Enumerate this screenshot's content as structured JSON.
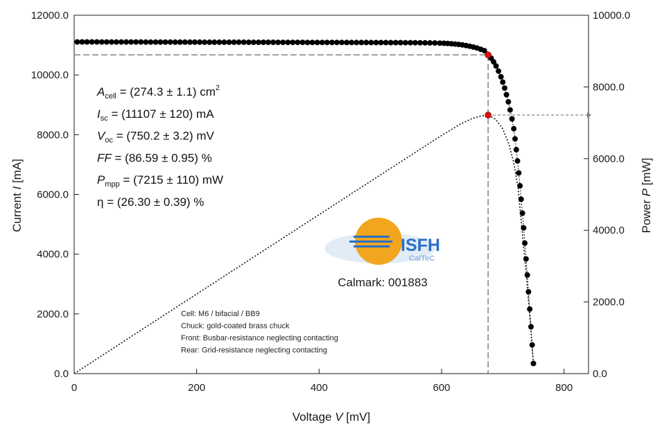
{
  "chart_data": {
    "type": "scatter",
    "xlabel_main": "Voltage ",
    "xlabel_var": "V",
    "xlabel_unit": " [mV]",
    "ylabel_main": "Current ",
    "ylabel_var": "I",
    "ylabel_unit": " [mA]",
    "y2label_main": "Power ",
    "y2label_var": "P",
    "y2label_unit": " [mW]",
    "xlim": [
      0,
      840
    ],
    "ylim": [
      0,
      12000
    ],
    "y2lim": [
      0,
      10000
    ],
    "x_ticks": [
      "0",
      "200",
      "400",
      "600",
      "800"
    ],
    "y_ticks": [
      "0.0",
      "2000.0",
      "4000.0",
      "6000.0",
      "8000.0",
      "10000.0",
      "12000.0"
    ],
    "y2_ticks": [
      "0.0",
      "2000.0",
      "4000.0",
      "6000.0",
      "8000.0",
      "10000.0"
    ],
    "mpp": {
      "voltage": 676,
      "current": 10673,
      "power": 7215
    },
    "iv_series": {
      "marker_color": "#000000",
      "points": [
        [
          5,
          11107
        ],
        [
          13,
          11107
        ],
        [
          21,
          11106
        ],
        [
          29,
          11106
        ],
        [
          37,
          11106
        ],
        [
          45,
          11105
        ],
        [
          53,
          11105
        ],
        [
          61,
          11105
        ],
        [
          69,
          11104
        ],
        [
          77,
          11104
        ],
        [
          85,
          11104
        ],
        [
          93,
          11103
        ],
        [
          101,
          11103
        ],
        [
          109,
          11103
        ],
        [
          117,
          11102
        ],
        [
          125,
          11102
        ],
        [
          133,
          11102
        ],
        [
          141,
          11101
        ],
        [
          149,
          11101
        ],
        [
          157,
          11101
        ],
        [
          165,
          11100
        ],
        [
          173,
          11100
        ],
        [
          181,
          11100
        ],
        [
          189,
          11099
        ],
        [
          197,
          11099
        ],
        [
          205,
          11099
        ],
        [
          213,
          11098
        ],
        [
          221,
          11098
        ],
        [
          229,
          11098
        ],
        [
          237,
          11097
        ],
        [
          245,
          11097
        ],
        [
          253,
          11097
        ],
        [
          261,
          11096
        ],
        [
          269,
          11096
        ],
        [
          277,
          11096
        ],
        [
          285,
          11095
        ],
        [
          293,
          11095
        ],
        [
          301,
          11095
        ],
        [
          309,
          11094
        ],
        [
          317,
          11094
        ],
        [
          325,
          11094
        ],
        [
          333,
          11093
        ],
        [
          341,
          11093
        ],
        [
          349,
          11093
        ],
        [
          357,
          11092
        ],
        [
          365,
          11092
        ],
        [
          373,
          11092
        ],
        [
          381,
          11091
        ],
        [
          389,
          11091
        ],
        [
          397,
          11091
        ],
        [
          405,
          11090
        ],
        [
          413,
          11090
        ],
        [
          421,
          11090
        ],
        [
          429,
          11089
        ],
        [
          437,
          11089
        ],
        [
          445,
          11088
        ],
        [
          453,
          11088
        ],
        [
          461,
          11088
        ],
        [
          469,
          11087
        ],
        [
          477,
          11087
        ],
        [
          485,
          11086
        ],
        [
          493,
          11086
        ],
        [
          501,
          11085
        ],
        [
          509,
          11085
        ],
        [
          517,
          11084
        ],
        [
          525,
          11084
        ],
        [
          533,
          11083
        ],
        [
          541,
          11082
        ],
        [
          549,
          11081
        ],
        [
          557,
          11080
        ],
        [
          565,
          11079
        ],
        [
          573,
          11077
        ],
        [
          581,
          11075
        ],
        [
          589,
          11072
        ],
        [
          597,
          11068
        ],
        [
          604,
          11062
        ],
        [
          610,
          11055
        ],
        [
          616,
          11046
        ],
        [
          622,
          11035
        ],
        [
          628,
          11022
        ],
        [
          634,
          11006
        ],
        [
          640,
          10986
        ],
        [
          646,
          10963
        ],
        [
          652,
          10935
        ],
        [
          658,
          10901
        ],
        [
          664,
          10861
        ],
        [
          670,
          10815
        ],
        [
          676,
          10673
        ],
        [
          681,
          10560
        ],
        [
          685,
          10440
        ],
        [
          689,
          10300
        ],
        [
          693,
          10130
        ],
        [
          697,
          9940
        ],
        [
          700,
          9760
        ],
        [
          703,
          9560
        ],
        [
          706,
          9340
        ],
        [
          709,
          9100
        ],
        [
          712,
          8830
        ],
        [
          715,
          8530
        ],
        [
          718,
          8200
        ],
        [
          720,
          7860
        ],
        [
          722,
          7500
        ],
        [
          724,
          7120
        ],
        [
          726,
          6720
        ],
        [
          728,
          6290
        ],
        [
          730,
          5840
        ],
        [
          732,
          5370
        ],
        [
          734,
          4880
        ],
        [
          736,
          4370
        ],
        [
          738,
          3840
        ],
        [
          740,
          3300
        ],
        [
          742,
          2740
        ],
        [
          744,
          2160
        ],
        [
          746,
          1570
        ],
        [
          748,
          960
        ],
        [
          750,
          340
        ]
      ]
    },
    "pv_series": {
      "line_style": "dotted",
      "points": [
        [
          0,
          0
        ],
        [
          50,
          555
        ],
        [
          100,
          1110
        ],
        [
          150,
          1665
        ],
        [
          200,
          2220
        ],
        [
          250,
          2774
        ],
        [
          300,
          3329
        ],
        [
          350,
          3883
        ],
        [
          400,
          4437
        ],
        [
          450,
          4990
        ],
        [
          500,
          5543
        ],
        [
          550,
          6095
        ],
        [
          600,
          6644
        ],
        [
          630,
          6958
        ],
        [
          650,
          7120
        ],
        [
          665,
          7190
        ],
        [
          676,
          7215
        ],
        [
          688,
          7100
        ],
        [
          700,
          6830
        ],
        [
          710,
          6400
        ],
        [
          718,
          5880
        ],
        [
          725,
          5180
        ],
        [
          732,
          3900
        ],
        [
          738,
          2830
        ],
        [
          744,
          1610
        ],
        [
          750,
          260
        ]
      ]
    },
    "mpp_color": "#e01010"
  },
  "parameters": [
    {
      "sym": "A",
      "sub": "cell",
      "val": " = (274.3 ± 1.1) cm",
      "sup": "2",
      "italic": true
    },
    {
      "sym": "I",
      "sub": "sc",
      "val": " = (11107 ± 120) mA",
      "sup": "",
      "italic": true
    },
    {
      "sym": "V",
      "sub": "oc",
      "val": " = (750.2 ± 3.2) mV",
      "sup": "",
      "italic": true
    },
    {
      "sym": "FF",
      "sub": "",
      "val": " = (86.59 ± 0.95) %",
      "sup": "",
      "italic": true
    },
    {
      "sym": "P",
      "sub": "mpp",
      "val": " = (7215 ± 110) mW",
      "sup": "",
      "italic": true
    },
    {
      "sym": "η",
      "sub": "",
      "val": " = (26.30 ± 0.39) %",
      "sup": "",
      "italic": false
    }
  ],
  "notes": [
    "Cell: M6 / bifacial / BB9",
    "Chuck: gold-coated brass chuck",
    "Front: Busbar-resistance neglecting contacting",
    "Rear: Grid-resistance neglecting contacting"
  ],
  "logo": {
    "text_main": "ISFH",
    "text_sub": "CalTeC"
  },
  "calmark": "Calmark: 001883",
  "colors": {
    "logo_blue": "#2b6fc4",
    "logo_orange": "#f2a51e",
    "guide": "#808080"
  }
}
